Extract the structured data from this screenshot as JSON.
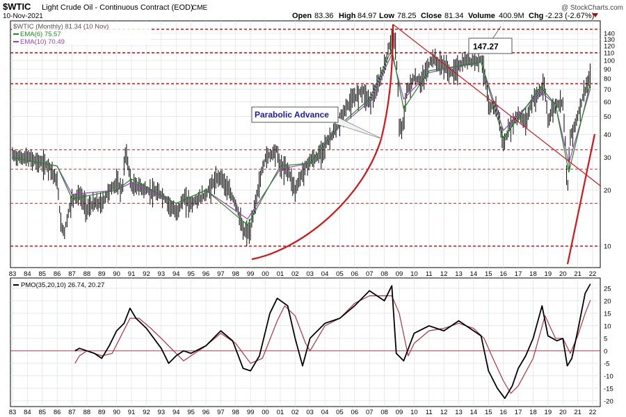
{
  "header": {
    "symbol": "$WTIC",
    "description": "Light Crude Oil - Continuous Contract (EOD)",
    "exchange": "CME",
    "date": "10-Nov-2021",
    "open_label": "Open",
    "open": "83.36",
    "high_label": "High",
    "high": "84.97",
    "low_label": "Low",
    "low": "78.25",
    "close_label": "Close",
    "close": "81.34",
    "volume_label": "Volume",
    "volume": "400.9M",
    "chg_label": "Chg",
    "chg": "-2.23 (-2.67%)",
    "watermark": "@ StockCharts.com"
  },
  "legend": {
    "main": "$WTIC (Monthly) 81.34 (10 Nov)",
    "ema6": "EMA(6) 75.57",
    "ema10": "EMA(10) 70.49",
    "pmo": "PMO(35,20,10) 26.74, 20.27"
  },
  "annotations": {
    "peak_label": "147.27",
    "parabolic_label": "Parabolic Advance"
  },
  "colors": {
    "price_bar": "#000000",
    "ema6": "#1a8c1a",
    "ema10": "#9a3fb8",
    "pmo_line": "#000000",
    "pmo_signal": "#b03040",
    "annotation_red": "#dd1111",
    "grid": "#d6dbe6",
    "label_blue": "#1a1ab0"
  },
  "chart_data": [
    {
      "type": "line",
      "title": "$WTIC Light Crude Oil - Continuous Contract (EOD) CME",
      "scale": "log",
      "ylim": [
        8,
        150
      ],
      "yticks": [
        10,
        20,
        30,
        40,
        50,
        60,
        70,
        80,
        90,
        100,
        110,
        120,
        130,
        140
      ],
      "x_tick_labels": [
        "83",
        "84",
        "85",
        "86",
        "87",
        "88",
        "89",
        "90",
        "91",
        "92",
        "93",
        "94",
        "95",
        "96",
        "97",
        "98",
        "99",
        "00",
        "01",
        "02",
        "03",
        "04",
        "05",
        "06",
        "07",
        "08",
        "09",
        "10",
        "11",
        "12",
        "13",
        "14",
        "15",
        "16",
        "17",
        "18",
        "19",
        "20",
        "21",
        "22"
      ],
      "grid": true,
      "horizontal_levels": [
        147.27,
        110,
        75,
        33,
        26,
        17,
        10
      ],
      "series": [
        {
          "name": "$WTIC (Monthly)",
          "x": [
            1983.0,
            1983.5,
            1984.0,
            1984.5,
            1985.0,
            1985.5,
            1986.0,
            1986.25,
            1986.5,
            1986.75,
            1987.0,
            1987.5,
            1988.0,
            1988.5,
            1989.0,
            1989.5,
            1990.0,
            1990.4,
            1990.6,
            1990.75,
            1991.0,
            1991.5,
            1992.0,
            1993.0,
            1993.5,
            1994.0,
            1994.5,
            1995.0,
            1995.5,
            1996.0,
            1996.5,
            1997.0,
            1997.5,
            1998.0,
            1998.5,
            1999.0,
            1999.5,
            2000.0,
            2000.75,
            2001.0,
            2001.5,
            2002.0,
            2002.5,
            2003.0,
            2003.5,
            2004.0,
            2004.5,
            2005.0,
            2005.5,
            2006.0,
            2006.5,
            2007.0,
            2007.5,
            2008.0,
            2008.5,
            2008.75,
            2009.0,
            2009.2,
            2009.5,
            2010.0,
            2010.5,
            2011.0,
            2011.3,
            2011.5,
            2012.0,
            2012.5,
            2013.0,
            2013.5,
            2014.0,
            2014.5,
            2014.75,
            2015.0,
            2015.5,
            2016.0,
            2016.5,
            2017.0,
            2017.5,
            2018.0,
            2018.75,
            2019.0,
            2019.5,
            2020.0,
            2020.3,
            2020.5,
            2021.0,
            2021.5,
            2021.85
          ],
          "y": [
            31,
            30,
            30,
            29,
            28,
            27,
            22,
            13,
            12,
            15,
            18,
            19,
            16,
            17,
            17,
            20,
            22,
            20,
            33,
            28,
            21,
            21,
            20,
            19,
            17,
            15,
            18,
            17,
            18,
            19,
            22,
            24,
            20,
            17,
            12,
            12,
            20,
            30,
            33,
            27,
            26,
            20,
            25,
            29,
            30,
            35,
            40,
            47,
            57,
            63,
            70,
            60,
            70,
            92,
            133,
            120,
            45,
            40,
            68,
            80,
            77,
            95,
            105,
            97,
            95,
            85,
            93,
            100,
            100,
            102,
            85,
            55,
            58,
            35,
            45,
            51,
            47,
            62,
            72,
            48,
            58,
            60,
            18,
            38,
            50,
            70,
            81
          ]
        },
        {
          "name": "EMA(6)",
          "x": [
            1983,
            1986,
            1987,
            1990,
            1991,
            1994,
            1996,
            1998.8,
            2001,
            2003,
            2005,
            2007,
            2008.5,
            2009.3,
            2011,
            2014.5,
            2016,
            2018.5,
            2019.5,
            2020.4,
            2021.85
          ],
          "y": [
            30,
            27,
            18,
            20,
            23,
            17,
            20,
            13,
            27,
            28,
            45,
            62,
            115,
            55,
            88,
            98,
            38,
            72,
            58,
            25,
            75.57
          ]
        },
        {
          "name": "EMA(10)",
          "x": [
            1983,
            1986,
            1987,
            1990,
            1991,
            1994,
            1996,
            1998.8,
            2001,
            2003,
            2005,
            2007,
            2008.5,
            2009.3,
            2011,
            2014.5,
            2016,
            2018.5,
            2019.5,
            2020.4,
            2021.85
          ],
          "y": [
            30,
            27,
            19,
            20,
            22,
            17,
            20,
            14,
            26,
            28,
            44,
            60,
            108,
            62,
            86,
            98,
            42,
            68,
            58,
            28,
            70.49
          ]
        }
      ]
    },
    {
      "type": "line",
      "title": "PMO(35,20,10)",
      "ylim": [
        -22,
        28
      ],
      "yticks": [
        -20,
        -15,
        -10,
        -5,
        0,
        5,
        10,
        15,
        20,
        25
      ],
      "x_tick_labels": [
        "83",
        "84",
        "85",
        "86",
        "87",
        "88",
        "89",
        "90",
        "91",
        "92",
        "93",
        "94",
        "95",
        "96",
        "97",
        "98",
        "99",
        "00",
        "01",
        "02",
        "03",
        "04",
        "05",
        "06",
        "07",
        "08",
        "09",
        "10",
        "11",
        "12",
        "13",
        "14",
        "15",
        "16",
        "17",
        "18",
        "19",
        "20",
        "21",
        "22"
      ],
      "grid": true,
      "series": [
        {
          "name": "PMO",
          "x": [
            1987.2,
            1987.5,
            1988,
            1988.5,
            1989,
            1989.5,
            1990,
            1990.5,
            1990.9,
            1991.3,
            1992,
            1993,
            1993.5,
            1994,
            1994.5,
            1995,
            1996,
            1997,
            1997.8,
            1998.5,
            1999,
            1999.6,
            2000.3,
            2000.8,
            2001.5,
            2002,
            2002.5,
            2003,
            2004,
            2005,
            2006,
            2007,
            2008,
            2008.5,
            2008.8,
            2009.3,
            2010,
            2011,
            2012,
            2013,
            2014,
            2014.5,
            2015,
            2015.6,
            2016.1,
            2016.6,
            2017,
            2017.5,
            2018,
            2018.6,
            2019,
            2019.6,
            2020,
            2020.3,
            2020.6,
            2021,
            2021.5,
            2021.85
          ],
          "y": [
            0,
            1,
            0,
            -1,
            -3,
            2,
            8,
            11,
            17,
            13,
            9,
            1,
            -5,
            -2,
            0,
            -1,
            2,
            8,
            4,
            -7,
            -8,
            -2,
            15,
            21,
            18,
            5,
            -6,
            5,
            11,
            13,
            18,
            24,
            20,
            26,
            -1,
            -4,
            7,
            10,
            8,
            12,
            8,
            6,
            -8,
            -15,
            -19,
            -14,
            -7,
            -2,
            5,
            18,
            6,
            4,
            5,
            -6,
            -3,
            8,
            23,
            26.74
          ]
        },
        {
          "name": "Signal",
          "x": [
            1987.2,
            1987.5,
            1988,
            1989,
            1989.7,
            1990.3,
            1990.9,
            1991.5,
            1992.3,
            1993,
            1994,
            1994.5,
            1995,
            1996,
            1997,
            1998,
            1999,
            1999.8,
            2000.8,
            2001.3,
            2002,
            2002.7,
            2003,
            2004,
            2005,
            2006,
            2007,
            2008.5,
            2009,
            2009.6,
            2010,
            2011,
            2012,
            2013,
            2014,
            2014.7,
            2015.3,
            2016,
            2016.5,
            2017,
            2018,
            2018.8,
            2019.5,
            2020,
            2020.5,
            2021,
            2021.5,
            2021.85
          ],
          "y": [
            -5,
            -2,
            0,
            -2,
            -1,
            6,
            13,
            13,
            9,
            5,
            -1,
            -4,
            -2,
            2,
            7,
            3,
            -5,
            -3,
            12,
            18,
            14,
            3,
            0,
            10,
            13,
            19,
            22,
            22,
            15,
            -2,
            3,
            8,
            9,
            11,
            9,
            5,
            -3,
            -12,
            -17,
            -14,
            -3,
            14,
            5,
            5,
            -1,
            6,
            15,
            20.27
          ]
        }
      ]
    }
  ]
}
